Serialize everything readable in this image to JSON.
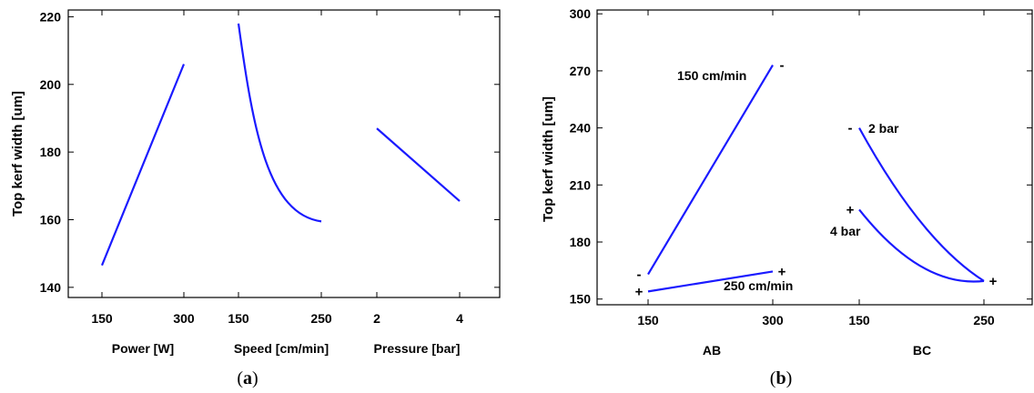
{
  "chart_data": [
    {
      "id": "a",
      "type": "line",
      "caption": "a",
      "ylabel": "Top kerf width [um]",
      "ylim": [
        137,
        222
      ],
      "yticks": [
        140,
        160,
        180,
        200,
        220
      ],
      "panels": [
        {
          "xlabel": "Power [W]",
          "xticks": [
            150,
            300
          ],
          "x": [
            150,
            300
          ],
          "y": [
            146.5,
            206
          ],
          "shape": "linear"
        },
        {
          "xlabel": "Speed [cm/min]",
          "xticks": [
            150,
            250
          ],
          "x": [
            150,
            250
          ],
          "y": [
            218,
            159.5
          ],
          "shape": "concave-up"
        },
        {
          "xlabel": "Pressure [bar]",
          "xticks": [
            2,
            4
          ],
          "x": [
            2,
            4
          ],
          "y": [
            187,
            165.5
          ],
          "shape": "linear"
        }
      ]
    },
    {
      "id": "b",
      "type": "line",
      "caption": "b",
      "ylabel": "Top kerf width [um]",
      "ylim": [
        147,
        302
      ],
      "yticks": [
        150,
        180,
        210,
        240,
        270,
        300
      ],
      "panels": [
        {
          "xlabel": "AB",
          "xticks": [
            150,
            300
          ],
          "series": [
            {
              "name": "150 cm/min",
              "x": [
                150,
                300
              ],
              "y": [
                163,
                273
              ]
            },
            {
              "name": "250 cm/min",
              "x": [
                150,
                300
              ],
              "y": [
                154,
                164.5
              ]
            }
          ],
          "signs": [
            {
              "text": "-",
              "at": "300,273"
            },
            {
              "text": "-",
              "at": "150,163"
            },
            {
              "text": "+",
              "at": "300,164.5"
            },
            {
              "text": "+",
              "at": "150,154"
            }
          ]
        },
        {
          "xlabel": "BC",
          "xticks": [
            150,
            250
          ],
          "series": [
            {
              "name": "2 bar",
              "x": [
                150,
                200,
                250
              ],
              "y": [
                240,
                190,
                159.5
              ]
            },
            {
              "name": "4 bar",
              "x": [
                150,
                200,
                250
              ],
              "y": [
                197,
                167,
                159.5
              ]
            }
          ],
          "signs": [
            {
              "text": "-",
              "at": "150,240"
            },
            {
              "text": "+",
              "at": "150,197"
            },
            {
              "text": "+",
              "at": "250,159.5"
            }
          ]
        }
      ]
    }
  ]
}
